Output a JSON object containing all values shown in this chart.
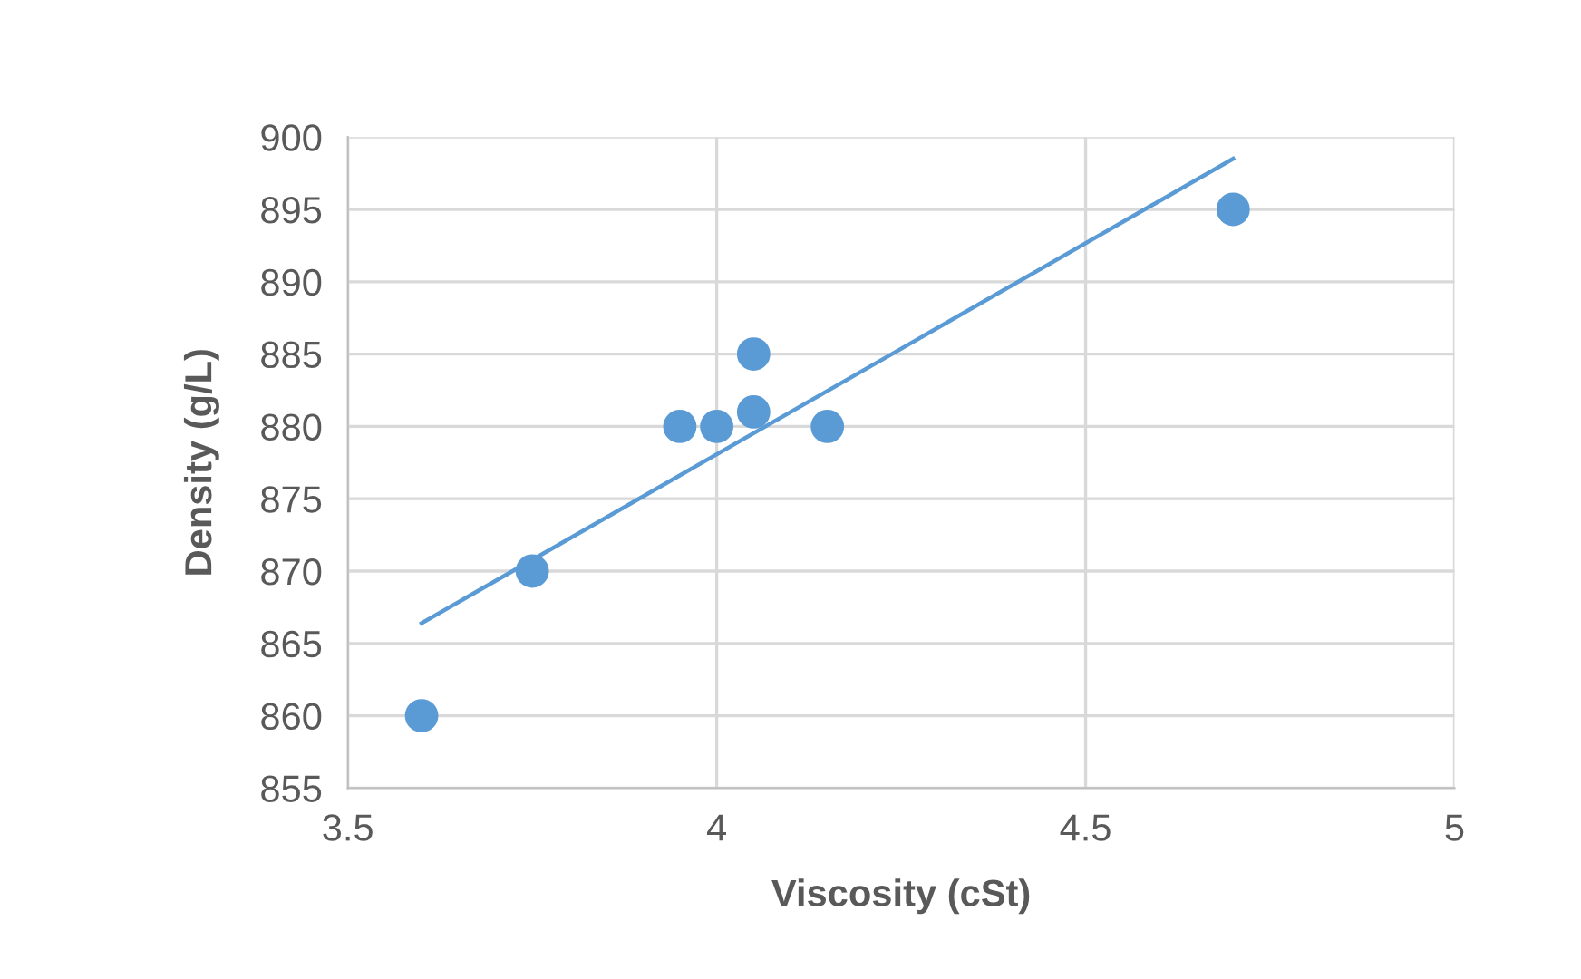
{
  "chart_data": {
    "type": "scatter",
    "xlabel": "Viscosity (cSt)",
    "ylabel": "Density (g/L)",
    "xlim": [
      3.5,
      5
    ],
    "xticks": [
      3.5,
      4,
      4.5,
      5
    ],
    "ylim": [
      855,
      900
    ],
    "yticks": [
      855,
      860,
      865,
      870,
      875,
      880,
      885,
      890,
      895,
      900
    ],
    "grid": true,
    "marker": "circle",
    "series": [
      {
        "color": "#5b9bd5",
        "x": [
          3.6,
          3.75,
          3.95,
          4.0,
          4.05,
          4.05,
          4.15,
          4.7
        ],
        "values": [
          860,
          870,
          880,
          880,
          885,
          881,
          880,
          895
        ]
      },
      {
        "type": "line",
        "color": "#5b9bd5",
        "marker": "none",
        "x": [
          3.6,
          4.7
        ],
        "values": [
          866.4,
          898.5
        ]
      }
    ]
  }
}
